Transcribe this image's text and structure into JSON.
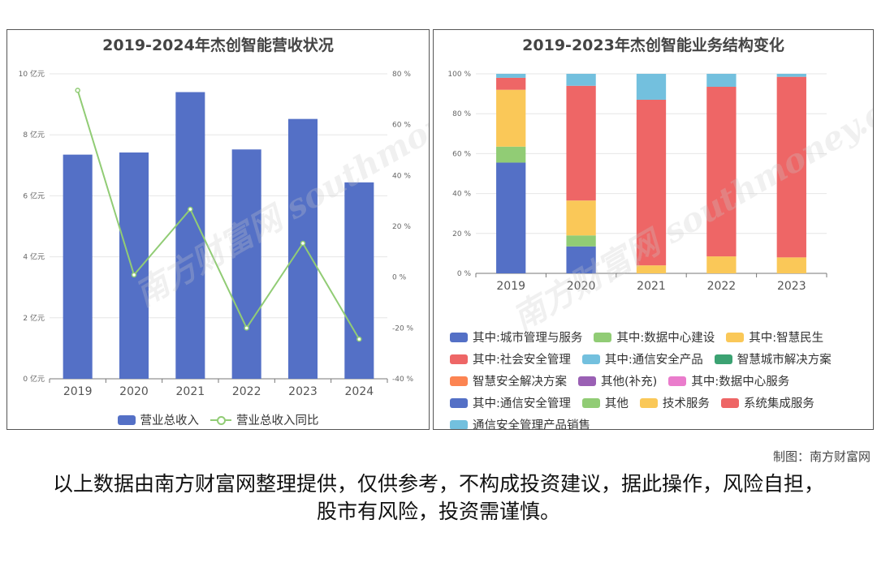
{
  "left_chart": {
    "title": "2019-2024年杰创智能营收状况",
    "legend": [
      "营业总收入",
      "营业总收入同比"
    ]
  },
  "right_chart": {
    "title": "2019-2023年杰创智能业务结构变化"
  },
  "watermark": "南方财富网 southmoney.com",
  "credit": "制图：南方财富网",
  "disclaimer": "以上数据由南方财富网整理提供，仅供参考，不构成投资建议，据此操作，风险自担，股市有风险，投资需谨慎。",
  "chart_data": [
    {
      "type": "bar",
      "title": "2019-2024年杰创智能营收状况",
      "categories": [
        "2019",
        "2020",
        "2021",
        "2022",
        "2023",
        "2024"
      ],
      "y_ticks": [
        "0 亿元",
        "2 亿元",
        "4 亿元",
        "6 亿元",
        "8 亿元",
        "10 亿元"
      ],
      "y2_ticks": [
        "-40 %",
        "-20 %",
        "0 %",
        "20 %",
        "40 %",
        "60 %",
        "80 %"
      ],
      "ylim": [
        0,
        10
      ],
      "y2lim": [
        -40,
        80
      ],
      "series": [
        {
          "name": "营业总收入",
          "type": "bar",
          "axis": "left",
          "color": "#5470c6",
          "values": [
            7.35,
            7.42,
            9.4,
            7.52,
            8.52,
            6.44
          ]
        },
        {
          "name": "营业总收入同比",
          "type": "line",
          "axis": "right",
          "color": "#91cc75",
          "values": [
            73.5,
            0.9,
            26.7,
            -20.0,
            13.3,
            -24.4
          ]
        }
      ]
    },
    {
      "type": "bar",
      "stacked": true,
      "title": "2019-2023年杰创智能业务结构变化",
      "categories": [
        "2019",
        "2020",
        "2021",
        "2022",
        "2023"
      ],
      "y_ticks": [
        "0 %",
        "20 %",
        "40 %",
        "60 %",
        "80 %",
        "100 %"
      ],
      "ylim": [
        0,
        100
      ],
      "series": [
        {
          "name": "其中:城市管理与服务",
          "color": "#5470c6",
          "values": [
            55.5,
            0,
            0,
            0,
            0
          ]
        },
        {
          "name": "其中:数据中心建设",
          "color": "#91cc75",
          "values": [
            8.0,
            0,
            0,
            0,
            0
          ]
        },
        {
          "name": "其中:智慧民生",
          "color": "#fac858",
          "values": [
            28.5,
            0,
            0,
            0,
            0
          ]
        },
        {
          "name": "其中:社会安全管理",
          "color": "#ee6666",
          "values": [
            6.0,
            0,
            0,
            0,
            0
          ]
        },
        {
          "name": "其中:通信安全产品",
          "color": "#73c0de",
          "values": [
            2.0,
            0,
            0,
            0,
            0
          ]
        },
        {
          "name": "智慧城市解决方案",
          "color": "#3ba272",
          "values": [
            0,
            0,
            0,
            0,
            0
          ]
        },
        {
          "name": "智慧安全解决方案",
          "color": "#fc8452",
          "values": [
            0,
            0,
            0,
            0,
            0
          ]
        },
        {
          "name": "其他(补充)",
          "color": "#9a60b4",
          "values": [
            0,
            0,
            0,
            0,
            0
          ]
        },
        {
          "name": "其中:数据中心服务",
          "color": "#ea7ccc",
          "values": [
            0,
            0,
            0,
            0,
            0
          ]
        },
        {
          "name": "其中:通信安全管理",
          "color": "#5470c6",
          "values": [
            0,
            13.5,
            0,
            0,
            0
          ]
        },
        {
          "name": "其他",
          "color": "#91cc75",
          "values": [
            0,
            5.5,
            0,
            0,
            0
          ]
        },
        {
          "name": "技术服务",
          "color": "#fac858",
          "values": [
            0,
            17.5,
            4.0,
            8.5,
            8.0
          ]
        },
        {
          "name": "系统集成服务",
          "color": "#ee6666",
          "values": [
            0,
            57.5,
            83.0,
            85.0,
            90.5
          ]
        },
        {
          "name": "通信安全管理产品销售",
          "color": "#73c0de",
          "values": [
            0,
            6.0,
            13.0,
            6.5,
            1.5
          ]
        }
      ]
    }
  ]
}
